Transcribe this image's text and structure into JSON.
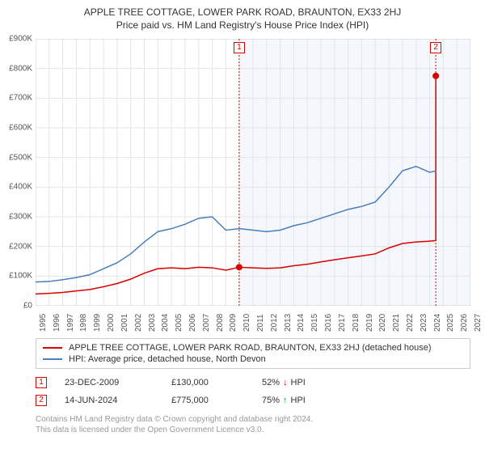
{
  "title": "APPLE TREE COTTAGE, LOWER PARK ROAD, BRAUNTON, EX33 2HJ",
  "subtitle": "Price paid vs. HM Land Registry's House Price Index (HPI)",
  "chart": {
    "type": "line",
    "background_color": "#ffffff",
    "shade_color": "#f4f7fb",
    "grid_color": "#e5e5e5",
    "border_color": "#cccccc",
    "x_start": 1995,
    "x_end": 2027,
    "x_tick_step": 1,
    "y_min": 0,
    "y_max": 900,
    "y_tick_step": 100,
    "y_prefix": "£",
    "y_suffix": "K",
    "x_label_fontsize": 10,
    "y_label_fontsize": 10,
    "shade_from_year": 2009.98,
    "series": [
      {
        "name": "APPLE TREE COTTAGE, LOWER PARK ROAD, BRAUNTON, EX33 2HJ (detached house)",
        "color": "#d90000",
        "width": 2,
        "points": [
          [
            1995,
            40
          ],
          [
            1996,
            42
          ],
          [
            1997,
            45
          ],
          [
            1998,
            50
          ],
          [
            1999,
            55
          ],
          [
            2000,
            64
          ],
          [
            2001,
            75
          ],
          [
            2002,
            90
          ],
          [
            2003,
            110
          ],
          [
            2004,
            125
          ],
          [
            2005,
            128
          ],
          [
            2006,
            125
          ],
          [
            2007,
            130
          ],
          [
            2008,
            128
          ],
          [
            2009,
            120
          ],
          [
            2009.98,
            130
          ],
          [
            2010,
            130
          ],
          [
            2011,
            128
          ],
          [
            2012,
            126
          ],
          [
            2013,
            128
          ],
          [
            2014,
            135
          ],
          [
            2015,
            140
          ],
          [
            2016,
            148
          ],
          [
            2017,
            155
          ],
          [
            2018,
            162
          ],
          [
            2019,
            168
          ],
          [
            2020,
            175
          ],
          [
            2021,
            195
          ],
          [
            2022,
            210
          ],
          [
            2023,
            215
          ],
          [
            2024,
            218
          ],
          [
            2024.45,
            220
          ],
          [
            2024.45,
            775
          ]
        ]
      },
      {
        "name": "HPI: Average price, detached house, North Devon",
        "color": "#4a7ebb",
        "width": 1.5,
        "points": [
          [
            1995,
            80
          ],
          [
            1996,
            82
          ],
          [
            1997,
            88
          ],
          [
            1998,
            95
          ],
          [
            1999,
            105
          ],
          [
            2000,
            125
          ],
          [
            2001,
            145
          ],
          [
            2002,
            175
          ],
          [
            2003,
            215
          ],
          [
            2004,
            250
          ],
          [
            2005,
            260
          ],
          [
            2006,
            275
          ],
          [
            2007,
            295
          ],
          [
            2008,
            300
          ],
          [
            2009,
            255
          ],
          [
            2010,
            260
          ],
          [
            2011,
            255
          ],
          [
            2012,
            250
          ],
          [
            2013,
            255
          ],
          [
            2014,
            270
          ],
          [
            2015,
            280
          ],
          [
            2016,
            295
          ],
          [
            2017,
            310
          ],
          [
            2018,
            325
          ],
          [
            2019,
            335
          ],
          [
            2020,
            350
          ],
          [
            2021,
            400
          ],
          [
            2022,
            455
          ],
          [
            2023,
            470
          ],
          [
            2024,
            450
          ],
          [
            2024.5,
            455
          ]
        ]
      }
    ],
    "markers": [
      {
        "id": "1",
        "year": 2009.98,
        "value": 130,
        "color": "#d90000",
        "box_top": true
      },
      {
        "id": "2",
        "year": 2024.45,
        "value": 775,
        "color": "#d90000",
        "box_top": true
      }
    ]
  },
  "legend": [
    {
      "color": "#d90000",
      "label": "APPLE TREE COTTAGE, LOWER PARK ROAD, BRAUNTON, EX33 2HJ (detached house)"
    },
    {
      "color": "#4a7ebb",
      "label": "HPI: Average price, detached house, North Devon"
    }
  ],
  "events": [
    {
      "id": "1",
      "color": "#d90000",
      "date": "23-DEC-2009",
      "price": "£130,000",
      "pct": "52%",
      "arrow": "↓",
      "arrow_color": "#d90000",
      "suffix": "HPI"
    },
    {
      "id": "2",
      "color": "#d90000",
      "date": "14-JUN-2024",
      "price": "£775,000",
      "pct": "75%",
      "arrow": "↑",
      "arrow_color": "#1a8f1a",
      "suffix": "HPI"
    }
  ],
  "footer": {
    "line1": "Contains HM Land Registry data © Crown copyright and database right 2024.",
    "line2": "This data is licensed under the Open Government Licence v3.0."
  }
}
